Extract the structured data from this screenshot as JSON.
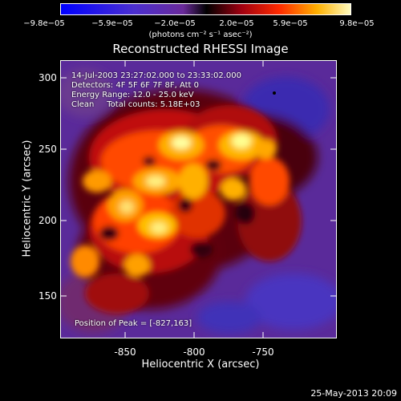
{
  "colorbar": {
    "ticks": [
      "−9.8e−05",
      "−5.9e−05",
      "−2.0e−05",
      "2.0e−05",
      "5.9e−05",
      "9.8e−05"
    ],
    "units": "(photons cm⁻² s⁻¹ asec⁻²)"
  },
  "title": "Reconstructed RHESSI Image",
  "info": {
    "time_range": "14-Jul-2003 23:27:02.000 to 23:33:02.000",
    "detectors": "Detectors: 4F 5F 6F 7F 8F, Att 0",
    "energy_range": "Energy Range: 12.0 - 25.0 keV",
    "method": "Clean     Total counts: 5.18E+03",
    "peak": "Position of Peak = [-827,163]"
  },
  "axes": {
    "xlabel": "Heliocentric X (arcsec)",
    "ylabel": "Heliocentric Y (arcsec)",
    "xticks": [
      "-850",
      "-800",
      "-750"
    ],
    "yticks": [
      "300",
      "250",
      "200",
      "150"
    ]
  },
  "footer": {
    "date": "25-May-2013 20:09"
  }
}
